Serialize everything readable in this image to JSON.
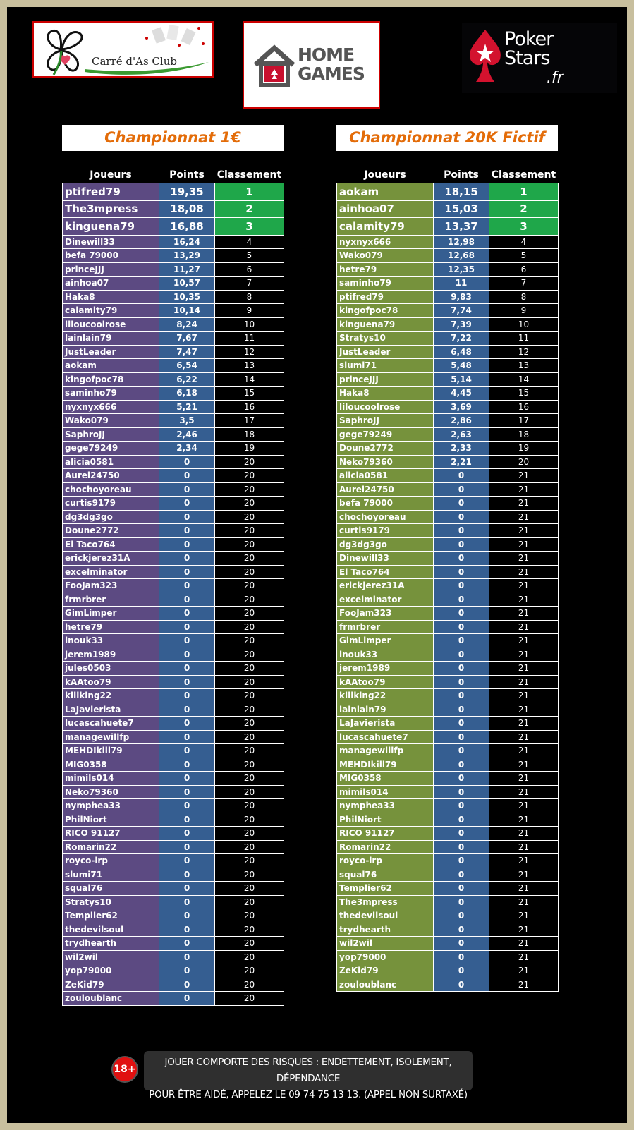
{
  "logos": {
    "club_text": "Carré d'As Club",
    "home_games_line1": "HOME",
    "home_games_line2": "GAMES",
    "pokerstars_line1": "Poker",
    "pokerstars_line2": "Stars",
    "pokerstars_suffix": ".fr"
  },
  "headers": {
    "players": "Joueurs",
    "points": "Points",
    "rank": "Classement"
  },
  "left": {
    "title": "Championnat 1€",
    "rows": [
      [
        "ptifred79",
        "19,35",
        "1"
      ],
      [
        "The3mpress",
        "18,08",
        "2"
      ],
      [
        "kinguena79",
        "16,88",
        "3"
      ],
      [
        "Dinewill33",
        "16,24",
        "4"
      ],
      [
        "befa 79000",
        "13,29",
        "5"
      ],
      [
        "princeJJJ",
        "11,27",
        "6"
      ],
      [
        "ainhoa07",
        "10,57",
        "7"
      ],
      [
        "Haka8",
        "10,35",
        "8"
      ],
      [
        "calamity79",
        "10,14",
        "9"
      ],
      [
        "liloucoolrose",
        "8,24",
        "10"
      ],
      [
        "lainlain79",
        "7,67",
        "11"
      ],
      [
        "JustLeader",
        "7,47",
        "12"
      ],
      [
        "aokam",
        "6,54",
        "13"
      ],
      [
        "kingofpoc78",
        "6,22",
        "14"
      ],
      [
        "saminho79",
        "6,18",
        "15"
      ],
      [
        "nyxnyx666",
        "5,21",
        "16"
      ],
      [
        "Wako079",
        "3,5",
        "17"
      ],
      [
        "SaphroJJ",
        "2,46",
        "18"
      ],
      [
        "gege79249",
        "2,34",
        "19"
      ],
      [
        "alicia0581",
        "0",
        "20"
      ],
      [
        "Aurel24750",
        "0",
        "20"
      ],
      [
        "chochoyoreau",
        "0",
        "20"
      ],
      [
        "curtis9179",
        "0",
        "20"
      ],
      [
        "dg3dg3go",
        "0",
        "20"
      ],
      [
        "Doune2772",
        "0",
        "20"
      ],
      [
        "El Taco764",
        "0",
        "20"
      ],
      [
        "erickjerez31A",
        "0",
        "20"
      ],
      [
        "excelminator",
        "0",
        "20"
      ],
      [
        "FooJam323",
        "0",
        "20"
      ],
      [
        "frmrbrer",
        "0",
        "20"
      ],
      [
        "GimLimper",
        "0",
        "20"
      ],
      [
        "hetre79",
        "0",
        "20"
      ],
      [
        "inouk33",
        "0",
        "20"
      ],
      [
        "jerem1989",
        "0",
        "20"
      ],
      [
        "jules0503",
        "0",
        "20"
      ],
      [
        "kAAtoo79",
        "0",
        "20"
      ],
      [
        "killking22",
        "0",
        "20"
      ],
      [
        "LaJavierista",
        "0",
        "20"
      ],
      [
        "lucascahuete7",
        "0",
        "20"
      ],
      [
        "managewillfp",
        "0",
        "20"
      ],
      [
        "MEHDIkill79",
        "0",
        "20"
      ],
      [
        "MIG0358",
        "0",
        "20"
      ],
      [
        "mimils014",
        "0",
        "20"
      ],
      [
        "Neko79360",
        "0",
        "20"
      ],
      [
        "nymphea33",
        "0",
        "20"
      ],
      [
        "PhilNiort",
        "0",
        "20"
      ],
      [
        "RICO 91127",
        "0",
        "20"
      ],
      [
        "Romarin22",
        "0",
        "20"
      ],
      [
        "royco-lrp",
        "0",
        "20"
      ],
      [
        "slumi71",
        "0",
        "20"
      ],
      [
        "squal76",
        "0",
        "20"
      ],
      [
        "Stratys10",
        "0",
        "20"
      ],
      [
        "Templier62",
        "0",
        "20"
      ],
      [
        "thedevilsoul",
        "0",
        "20"
      ],
      [
        "trydhearth",
        "0",
        "20"
      ],
      [
        "wil2wil",
        "0",
        "20"
      ],
      [
        "yop79000",
        "0",
        "20"
      ],
      [
        "ZeKid79",
        "0",
        "20"
      ],
      [
        "zouloublanc",
        "0",
        "20"
      ]
    ]
  },
  "right": {
    "title": "Championnat 20K Fictif",
    "rows": [
      [
        "aokam",
        "18,15",
        "1"
      ],
      [
        "ainhoa07",
        "15,03",
        "2"
      ],
      [
        "calamity79",
        "13,37",
        "3"
      ],
      [
        "nyxnyx666",
        "12,98",
        "4"
      ],
      [
        "Wako079",
        "12,68",
        "5"
      ],
      [
        "hetre79",
        "12,35",
        "6"
      ],
      [
        "saminho79",
        "11",
        "7"
      ],
      [
        "ptifred79",
        "9,83",
        "8"
      ],
      [
        "kingofpoc78",
        "7,74",
        "9"
      ],
      [
        "kinguena79",
        "7,39",
        "10"
      ],
      [
        "Stratys10",
        "7,22",
        "11"
      ],
      [
        "JustLeader",
        "6,48",
        "12"
      ],
      [
        "slumi71",
        "5,48",
        "13"
      ],
      [
        "princeJJJ",
        "5,14",
        "14"
      ],
      [
        "Haka8",
        "4,45",
        "15"
      ],
      [
        "liloucoolrose",
        "3,69",
        "16"
      ],
      [
        "SaphroJJ",
        "2,86",
        "17"
      ],
      [
        "gege79249",
        "2,63",
        "18"
      ],
      [
        "Doune2772",
        "2,33",
        "19"
      ],
      [
        "Neko79360",
        "2,21",
        "20"
      ],
      [
        "alicia0581",
        "0",
        "21"
      ],
      [
        "Aurel24750",
        "0",
        "21"
      ],
      [
        "befa 79000",
        "0",
        "21"
      ],
      [
        "chochoyoreau",
        "0",
        "21"
      ],
      [
        "curtis9179",
        "0",
        "21"
      ],
      [
        "dg3dg3go",
        "0",
        "21"
      ],
      [
        "Dinewill33",
        "0",
        "21"
      ],
      [
        "El Taco764",
        "0",
        "21"
      ],
      [
        "erickjerez31A",
        "0",
        "21"
      ],
      [
        "excelminator",
        "0",
        "21"
      ],
      [
        "FooJam323",
        "0",
        "21"
      ],
      [
        "frmrbrer",
        "0",
        "21"
      ],
      [
        "GimLimper",
        "0",
        "21"
      ],
      [
        "inouk33",
        "0",
        "21"
      ],
      [
        "jerem1989",
        "0",
        "21"
      ],
      [
        "kAAtoo79",
        "0",
        "21"
      ],
      [
        "killking22",
        "0",
        "21"
      ],
      [
        "lainlain79",
        "0",
        "21"
      ],
      [
        "LaJavierista",
        "0",
        "21"
      ],
      [
        "lucascahuete7",
        "0",
        "21"
      ],
      [
        "managewillfp",
        "0",
        "21"
      ],
      [
        "MEHDIkill79",
        "0",
        "21"
      ],
      [
        "MIG0358",
        "0",
        "21"
      ],
      [
        "mimils014",
        "0",
        "21"
      ],
      [
        "nymphea33",
        "0",
        "21"
      ],
      [
        "PhilNiort",
        "0",
        "21"
      ],
      [
        "RICO 91127",
        "0",
        "21"
      ],
      [
        "Romarin22",
        "0",
        "21"
      ],
      [
        "royco-lrp",
        "0",
        "21"
      ],
      [
        "squal76",
        "0",
        "21"
      ],
      [
        "Templier62",
        "0",
        "21"
      ],
      [
        "The3mpress",
        "0",
        "21"
      ],
      [
        "thedevilsoul",
        "0",
        "21"
      ],
      [
        "trydhearth",
        "0",
        "21"
      ],
      [
        "wil2wil",
        "0",
        "21"
      ],
      [
        "yop79000",
        "0",
        "21"
      ],
      [
        "ZeKid79",
        "0",
        "21"
      ],
      [
        "zouloublanc",
        "0",
        "21"
      ]
    ]
  },
  "footer": {
    "badge": "18+",
    "line1": "JOUER COMPORTE DES RISQUES : ENDETTEMENT, ISOLEMENT, DÉPENDANCE",
    "line2": "POUR ÊTRE AIDÉ, APPELEZ LE 09 74 75 13 13. (APPEL NON SURTAXÉ)"
  },
  "colors": {
    "title_orange": "#e36c09",
    "left_name_bg": "#5c4a82",
    "right_name_bg": "#76923c",
    "points_bg": "#355e91",
    "top3_rank_bg": "#1fa74a"
  }
}
